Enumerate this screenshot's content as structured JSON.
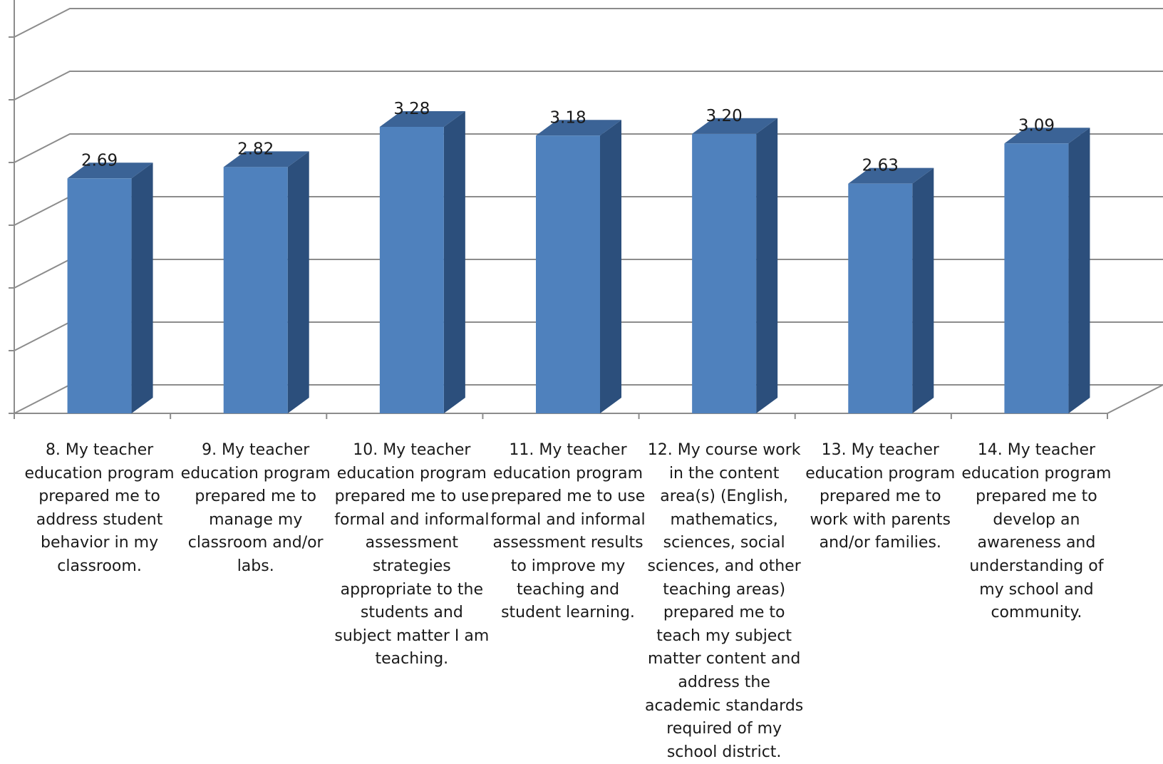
{
  "chart_data": {
    "type": "bar",
    "style": "3d-column",
    "categories": [
      "8. My teacher education program prepared me to address student behavior in my classroom.",
      "9. My teacher education program prepared me to manage my classroom and/or labs.",
      "10. My teacher education program prepared me to use formal and informal assessment strategies appropriate to the students and subject matter I am teaching.",
      "11. My teacher education program prepared me to use formal and informal assessment results to improve my teaching and student learning.",
      "12. My course work in the content area(s) (English, mathematics, sciences, social sciences, and other teaching areas) prepared me to teach my subject matter content and address the academic standards required of my school district.",
      "13. My teacher education program prepared me to work with parents and/or families.",
      "14. My teacher education program prepared me to develop an awareness and understanding of my school and community."
    ],
    "values": [
      2.69,
      2.82,
      3.28,
      3.18,
      3.2,
      2.63,
      3.09
    ],
    "value_labels": [
      "2.69",
      "2.82",
      "3.28",
      "3.18",
      "3.20",
      "2.63",
      "3.09"
    ],
    "title": "",
    "xlabel": "",
    "ylabel": "",
    "ylim": [
      0,
      3.2
    ],
    "grid": true,
    "legend": "none",
    "colors": {
      "bar_front": "#4f81bd",
      "bar_side": "#2c4f7c",
      "bar_top": "#3b6396",
      "grid": "#8c8c8c",
      "text": "#1a1a1a"
    }
  }
}
